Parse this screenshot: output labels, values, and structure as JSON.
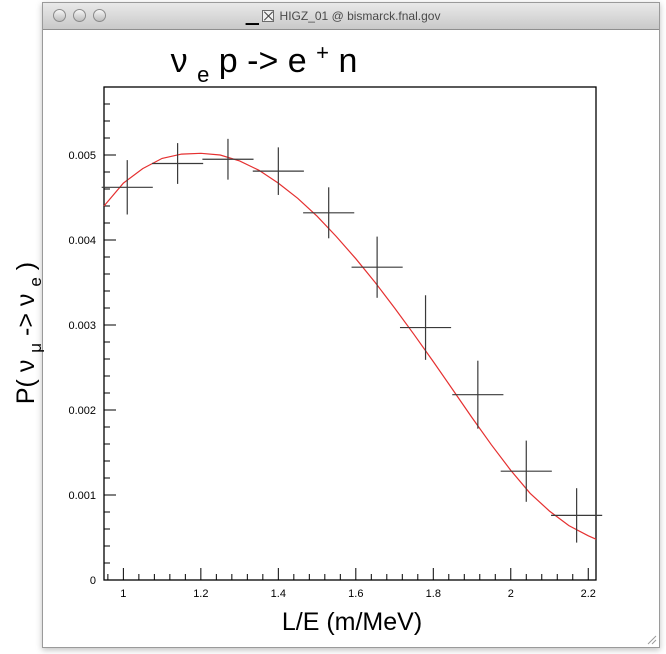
{
  "window": {
    "title": "HIGZ_01 @ bismarck.fnal.gov"
  },
  "chart_data": {
    "type": "scatter",
    "title": {
      "nu_symbol": "ν",
      "nu_subscript": "e",
      "text": " p -> e",
      "superscript": "+",
      "tail": " n"
    },
    "xlabel": "L/E (m/MeV)",
    "ylabel": {
      "prefix": "P(",
      "nu1": "ν",
      "sub1": "μ",
      "arrow": "->",
      "nu2": "ν",
      "sub2": "e",
      "suffix": ")"
    },
    "xlim": [
      0.95,
      2.22
    ],
    "ylim": [
      0,
      0.0058
    ],
    "x_ticks": [
      "1",
      "1.2",
      "1.4",
      "1.6",
      "1.8",
      "2",
      "2.2"
    ],
    "x_tick_values": [
      1,
      1.2,
      1.4,
      1.6,
      1.8,
      2,
      2.2
    ],
    "y_ticks": [
      "0",
      "0.001",
      "0.002",
      "0.003",
      "0.004",
      "0.005"
    ],
    "y_tick_values": [
      0,
      0.001,
      0.002,
      0.003,
      0.004,
      0.005
    ],
    "points": [
      {
        "x": 1.01,
        "y": 0.00462,
        "xerr": 0.066,
        "yerr": 0.00032
      },
      {
        "x": 1.14,
        "y": 0.0049,
        "xerr": 0.066,
        "yerr": 0.00024
      },
      {
        "x": 1.27,
        "y": 0.00495,
        "xerr": 0.066,
        "yerr": 0.00024
      },
      {
        "x": 1.4,
        "y": 0.00481,
        "xerr": 0.066,
        "yerr": 0.00028
      },
      {
        "x": 1.53,
        "y": 0.00432,
        "xerr": 0.066,
        "yerr": 0.0003
      },
      {
        "x": 1.655,
        "y": 0.00368,
        "xerr": 0.066,
        "yerr": 0.00036
      },
      {
        "x": 1.78,
        "y": 0.00297,
        "xerr": 0.066,
        "yerr": 0.00038
      },
      {
        "x": 1.915,
        "y": 0.00218,
        "xerr": 0.066,
        "yerr": 0.0004
      },
      {
        "x": 2.04,
        "y": 0.00128,
        "xerr": 0.066,
        "yerr": 0.00036
      },
      {
        "x": 2.17,
        "y": 0.00076,
        "xerr": 0.066,
        "yerr": 0.00032
      }
    ],
    "fit_curve": {
      "color": "#e53030",
      "x": [
        0.95,
        1.0,
        1.05,
        1.1,
        1.15,
        1.2,
        1.25,
        1.3,
        1.35,
        1.4,
        1.45,
        1.5,
        1.55,
        1.6,
        1.65,
        1.7,
        1.75,
        1.8,
        1.85,
        1.9,
        1.95,
        2.0,
        2.05,
        2.1,
        2.15,
        2.2,
        2.22
      ],
      "y": [
        0.0044,
        0.00467,
        0.00484,
        0.00496,
        0.00501,
        0.00502,
        0.005,
        0.00493,
        0.00482,
        0.00467,
        0.00449,
        0.00428,
        0.00404,
        0.00378,
        0.0035,
        0.0032,
        0.00289,
        0.00257,
        0.00224,
        0.00191,
        0.00159,
        0.00129,
        0.00102,
        0.00081,
        0.00064,
        0.00052,
        0.00048
      ]
    },
    "colors": {
      "points": "#3a3a3a",
      "axis": "#000000"
    }
  }
}
